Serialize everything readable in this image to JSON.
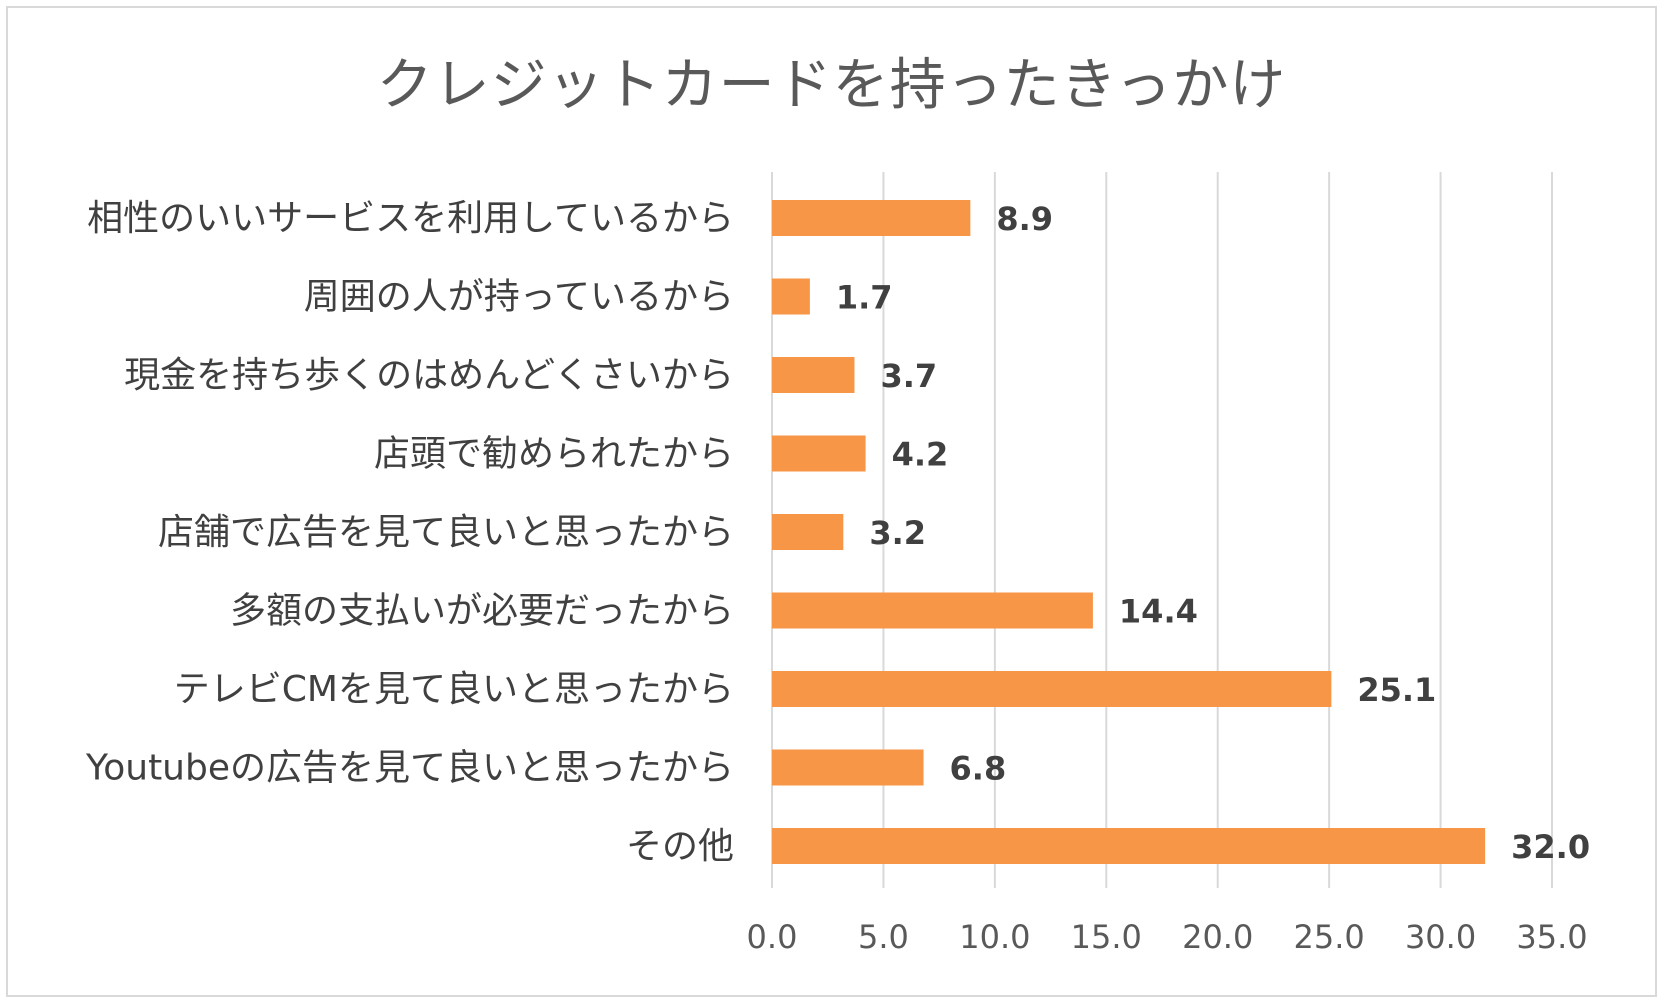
{
  "chart_data": {
    "type": "bar",
    "orientation": "horizontal",
    "title": "クレジットカードを持ったきっかけ",
    "categories": [
      "相性のいいサービスを利用しているから",
      "周囲の人が持っているから",
      "現金を持ち歩くのはめんどくさいから",
      "店頭で勧められたから",
      "店舗で広告を見て良いと思ったから",
      "多額の支払いが必要だったから",
      "テレビCMを見て良いと思ったから",
      "Youtubeの広告を見て良いと思ったから",
      "その他"
    ],
    "values": [
      8.9,
      1.7,
      3.7,
      4.2,
      3.2,
      14.4,
      25.1,
      6.8,
      32.0
    ],
    "value_labels": [
      "8.9",
      "1.7",
      "3.7",
      "4.2",
      "3.2",
      "14.4",
      "25.1",
      "6.8",
      "32.0"
    ],
    "xlim": [
      0,
      35
    ],
    "ticks": [
      0,
      5,
      10,
      15,
      20,
      25,
      30,
      35
    ],
    "tick_labels": [
      "0.0",
      "5.0",
      "10.0",
      "15.0",
      "20.0",
      "25.0",
      "30.0",
      "35.0"
    ],
    "grid": true,
    "legend": "none",
    "bar_color": "#f79646",
    "grid_color": "#d9d9d9"
  }
}
